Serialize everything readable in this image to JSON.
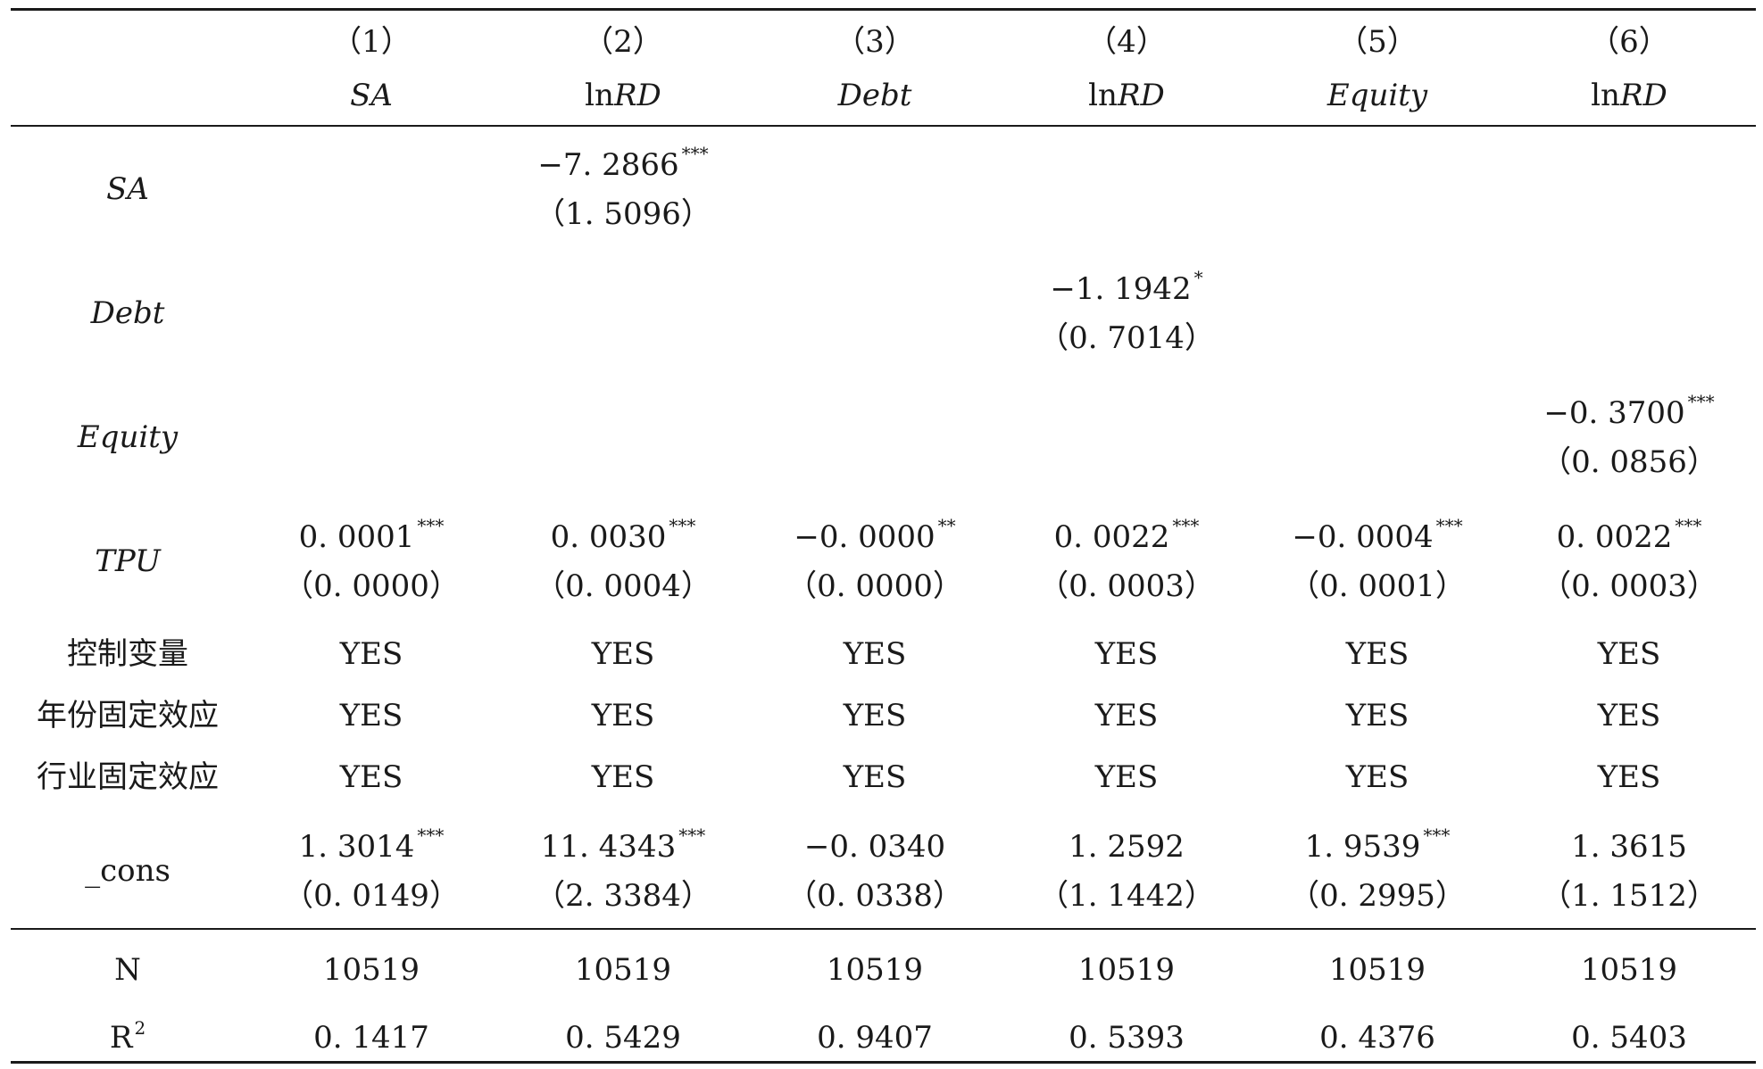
{
  "columns": [
    {
      "number": "（1）",
      "label": "SA"
    },
    {
      "number": "（2）",
      "label": "lnRD",
      "label_prefix": "ln",
      "label_italic": "RD"
    },
    {
      "number": "（3）",
      "label": "Debt"
    },
    {
      "number": "（4）",
      "label": "lnRD",
      "label_prefix": "ln",
      "label_italic": "RD"
    },
    {
      "number": "（5）",
      "label": "Equity"
    },
    {
      "number": "（6）",
      "label": "lnRD",
      "label_prefix": "ln",
      "label_italic": "RD"
    }
  ],
  "rows": {
    "sa": {
      "label": "SA",
      "coef": [
        "",
        "−7. 2866",
        "",
        "",
        "",
        ""
      ],
      "stars": [
        "",
        "***",
        "",
        "",
        "",
        ""
      ],
      "se": [
        "",
        "（1. 5096）",
        "",
        "",
        "",
        ""
      ]
    },
    "debt": {
      "label": "Debt",
      "coef": [
        "",
        "",
        "",
        "−1. 1942",
        "",
        ""
      ],
      "stars": [
        "",
        "",
        "",
        "*",
        "",
        ""
      ],
      "se": [
        "",
        "",
        "",
        "（0. 7014）",
        "",
        ""
      ]
    },
    "equity": {
      "label": "Equity",
      "coef": [
        "",
        "",
        "",
        "",
        "",
        "−0. 3700"
      ],
      "stars": [
        "",
        "",
        "",
        "",
        "",
        "***"
      ],
      "se": [
        "",
        "",
        "",
        "",
        "",
        "（0. 0856）"
      ]
    },
    "tpu": {
      "label": "TPU",
      "coef": [
        "0. 0001",
        "0. 0030",
        "−0. 0000",
        "0. 0022",
        "−0. 0004",
        "0. 0022"
      ],
      "stars": [
        "***",
        "***",
        "**",
        "***",
        "***",
        "***"
      ],
      "se": [
        "（0. 0000）",
        "（0. 0004）",
        "（0. 0000）",
        "（0. 0003）",
        "（0. 0001）",
        "（0. 0003）"
      ]
    },
    "controls": {
      "label": "控制变量",
      "values": [
        "YES",
        "YES",
        "YES",
        "YES",
        "YES",
        "YES"
      ]
    },
    "year_fe": {
      "label": "年份固定效应",
      "values": [
        "YES",
        "YES",
        "YES",
        "YES",
        "YES",
        "YES"
      ]
    },
    "industry_fe": {
      "label": "行业固定效应",
      "values": [
        "YES",
        "YES",
        "YES",
        "YES",
        "YES",
        "YES"
      ]
    },
    "cons": {
      "label": "_cons",
      "coef": [
        "1. 3014",
        "11. 4343",
        "−0. 0340",
        "1. 2592",
        "1. 9539",
        "1. 3615"
      ],
      "stars": [
        "***",
        "***",
        "",
        "",
        "***",
        ""
      ],
      "se": [
        "（0. 0149）",
        "（2. 3384）",
        "（0. 0338）",
        "（1. 1442）",
        "（0. 2995）",
        "（1. 1512）"
      ]
    },
    "n": {
      "label": "N",
      "values": [
        "10519",
        "10519",
        "10519",
        "10519",
        "10519",
        "10519"
      ]
    },
    "r2": {
      "label": "R",
      "label_sup": "2",
      "values": [
        "0. 1417",
        "0. 5429",
        "0. 9407",
        "0. 5393",
        "0. 4376",
        "0. 5403"
      ]
    }
  }
}
